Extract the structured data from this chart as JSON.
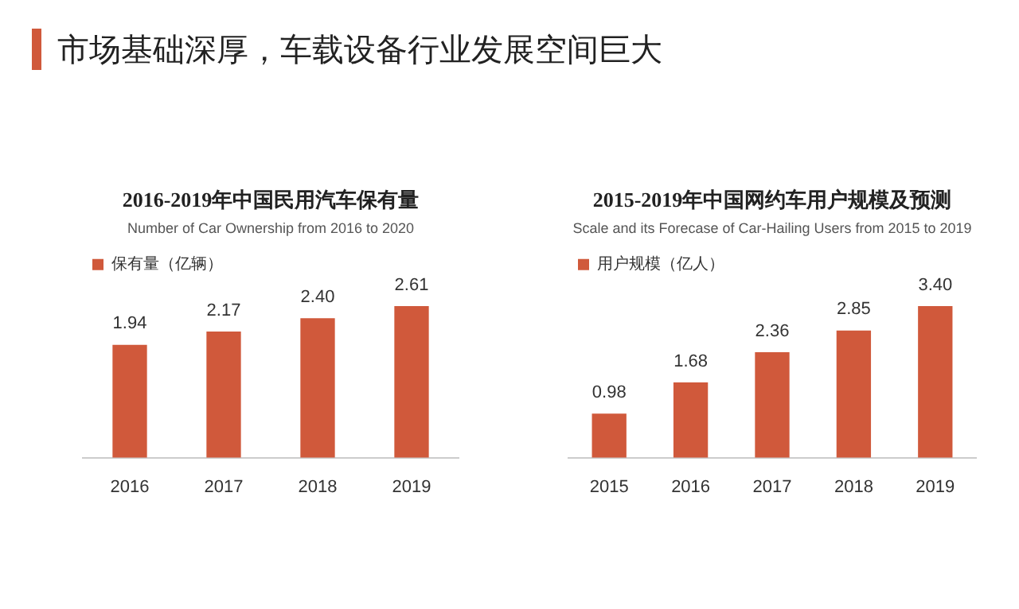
{
  "chart_data": [
    {
      "type": "other",
      "title": "市场基础深厚，车载设备行业发展空间巨大"
    },
    {
      "type": "bar",
      "title": "2016-2019年中国民用汽车保有量",
      "subtitle": "Number of Car Ownership from 2016 to 2020",
      "categories": [
        "2016",
        "2017",
        "2018",
        "2019"
      ],
      "series": [
        {
          "name": "保有量（亿辆）",
          "color": "#d0593b",
          "values": [
            1.94,
            2.17,
            2.4,
            2.61
          ],
          "value_labels": [
            "1.94",
            "2.17",
            "2.40",
            "2.61"
          ]
        }
      ],
      "legend": "top left",
      "grid": false
    },
    {
      "type": "bar",
      "title": "2015-2019年中国网约车用户规模及预测",
      "subtitle": "Scale and its Forecase of Car-Hailing Users from 2015 to 2019",
      "categories": [
        "2015",
        "2016",
        "2017",
        "2018",
        "2019"
      ],
      "series": [
        {
          "name": "用户规模（亿人）",
          "color": "#d0593b",
          "values": [
            0.98,
            1.68,
            2.36,
            2.85,
            3.4
          ],
          "value_labels": [
            "0.98",
            "1.68",
            "2.36",
            "2.85",
            "3.40"
          ]
        }
      ],
      "legend": "top left",
      "grid": false
    }
  ]
}
